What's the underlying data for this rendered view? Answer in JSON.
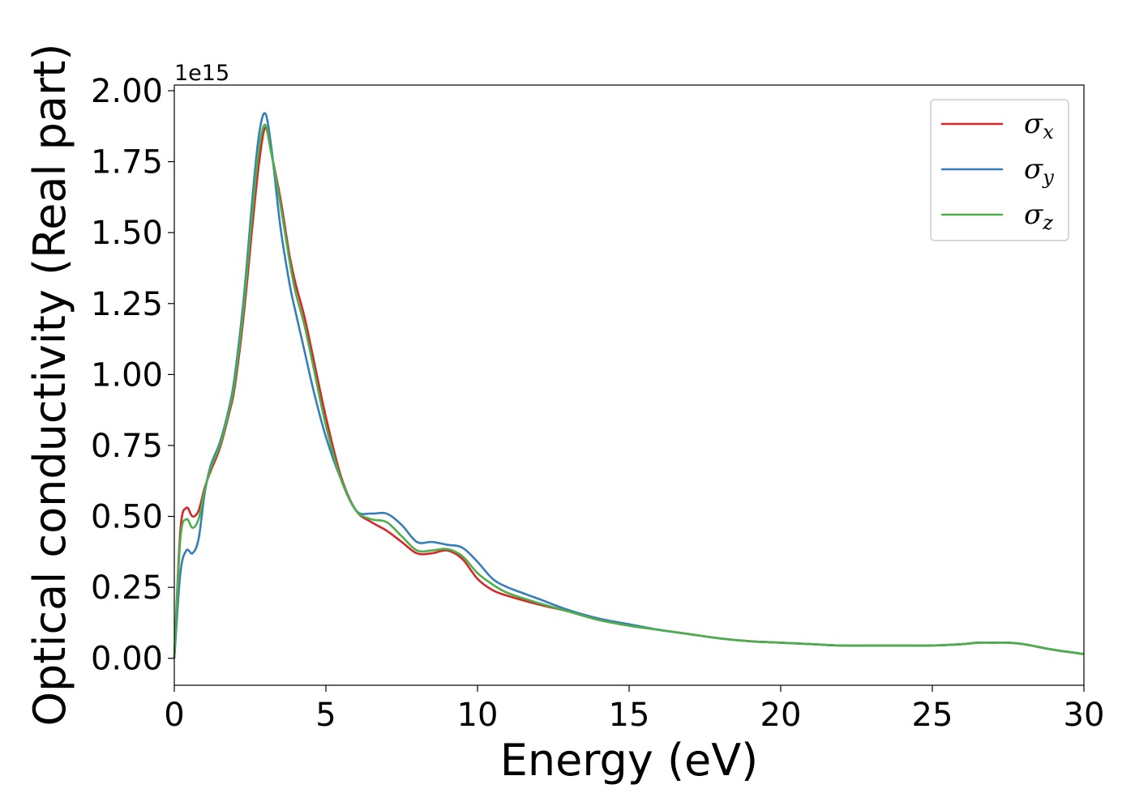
{
  "chart_data": {
    "type": "line",
    "xlabel": "Energy (eV)",
    "ylabel": "Optical conductivity (Real part)",
    "y_offset_label": "1e15",
    "xlim": [
      0,
      30
    ],
    "ylim": [
      -0.095,
      2.02
    ],
    "y_scale": 1000000000000000.0,
    "x_ticks": [
      0,
      5,
      10,
      15,
      20,
      25,
      30
    ],
    "x_tick_labels": [
      "0",
      "5",
      "10",
      "15",
      "20",
      "25",
      "30"
    ],
    "y_ticks": [
      0.0,
      0.25,
      0.5,
      0.75,
      1.0,
      1.25,
      1.5,
      1.75,
      2.0
    ],
    "y_tick_labels": [
      "0.00",
      "0.25",
      "0.50",
      "0.75",
      "1.00",
      "1.25",
      "1.50",
      "1.75",
      "2.00"
    ],
    "grid": false,
    "legend_position": "top-right",
    "series": [
      {
        "name": "σ",
        "subscript": "x",
        "color": "#d62728",
        "x": [
          0,
          0.2,
          0.4,
          0.6,
          0.8,
          1.0,
          1.2,
          1.5,
          1.8,
          2.0,
          2.3,
          2.6,
          2.8,
          3.0,
          3.2,
          3.5,
          3.8,
          4.0,
          4.3,
          4.6,
          5.0,
          5.5,
          6.0,
          6.5,
          7.0,
          7.5,
          8.0,
          8.5,
          9.0,
          9.5,
          10.0,
          10.5,
          11.0,
          12.0,
          13.0,
          14.0,
          15.0,
          16.0,
          17.0,
          18.0,
          19.0,
          20.0,
          21.0,
          22.0,
          23.0,
          24.0,
          25.0,
          26.0,
          26.5,
          27.0,
          27.5,
          28.0,
          29.0,
          30.0
        ],
        "values": [
          0.0,
          0.45,
          0.53,
          0.5,
          0.52,
          0.6,
          0.66,
          0.74,
          0.86,
          0.96,
          1.22,
          1.55,
          1.75,
          1.87,
          1.78,
          1.62,
          1.42,
          1.32,
          1.2,
          1.05,
          0.85,
          0.64,
          0.52,
          0.48,
          0.45,
          0.41,
          0.37,
          0.37,
          0.38,
          0.35,
          0.28,
          0.24,
          0.22,
          0.19,
          0.165,
          0.135,
          0.115,
          0.1,
          0.085,
          0.07,
          0.06,
          0.055,
          0.05,
          0.045,
          0.045,
          0.045,
          0.045,
          0.05,
          0.055,
          0.055,
          0.055,
          0.05,
          0.03,
          0.015
        ]
      },
      {
        "name": "σ",
        "subscript": "y",
        "color": "#377eb8",
        "x": [
          0,
          0.2,
          0.4,
          0.6,
          0.8,
          1.0,
          1.2,
          1.5,
          1.8,
          2.0,
          2.3,
          2.6,
          2.8,
          3.0,
          3.2,
          3.5,
          3.8,
          4.0,
          4.3,
          4.6,
          5.0,
          5.5,
          6.0,
          6.5,
          7.0,
          7.5,
          8.0,
          8.5,
          9.0,
          9.5,
          10.0,
          10.5,
          11.0,
          12.0,
          13.0,
          14.0,
          15.0,
          16.0,
          17.0,
          18.0,
          19.0,
          20.0,
          21.0,
          22.0,
          23.0,
          24.0,
          25.0,
          26.0,
          26.5,
          27.0,
          27.5,
          28.0,
          29.0,
          30.0
        ],
        "values": [
          0.0,
          0.3,
          0.38,
          0.37,
          0.42,
          0.58,
          0.68,
          0.76,
          0.88,
          1.0,
          1.28,
          1.65,
          1.85,
          1.92,
          1.8,
          1.52,
          1.32,
          1.22,
          1.08,
          0.94,
          0.78,
          0.63,
          0.52,
          0.51,
          0.51,
          0.47,
          0.41,
          0.41,
          0.4,
          0.39,
          0.34,
          0.28,
          0.25,
          0.21,
          0.17,
          0.14,
          0.12,
          0.1,
          0.085,
          0.07,
          0.06,
          0.055,
          0.05,
          0.045,
          0.045,
          0.045,
          0.045,
          0.05,
          0.055,
          0.055,
          0.055,
          0.05,
          0.03,
          0.015
        ]
      },
      {
        "name": "σ",
        "subscript": "z",
        "color": "#4daf4a",
        "x": [
          0,
          0.2,
          0.4,
          0.6,
          0.8,
          1.0,
          1.2,
          1.5,
          1.8,
          2.0,
          2.3,
          2.6,
          2.8,
          3.0,
          3.2,
          3.5,
          3.8,
          4.0,
          4.3,
          4.6,
          5.0,
          5.5,
          6.0,
          6.5,
          7.0,
          7.5,
          8.0,
          8.5,
          9.0,
          9.5,
          10.0,
          10.5,
          11.0,
          12.0,
          13.0,
          14.0,
          15.0,
          16.0,
          17.0,
          18.0,
          19.0,
          20.0,
          21.0,
          22.0,
          23.0,
          24.0,
          25.0,
          26.0,
          26.5,
          27.0,
          27.5,
          28.0,
          29.0,
          30.0
        ],
        "values": [
          0.0,
          0.42,
          0.49,
          0.46,
          0.49,
          0.59,
          0.67,
          0.75,
          0.87,
          0.98,
          1.25,
          1.6,
          1.8,
          1.88,
          1.78,
          1.6,
          1.4,
          1.29,
          1.17,
          1.02,
          0.82,
          0.63,
          0.52,
          0.49,
          0.48,
          0.43,
          0.38,
          0.38,
          0.385,
          0.36,
          0.3,
          0.26,
          0.23,
          0.195,
          0.165,
          0.135,
          0.115,
          0.1,
          0.085,
          0.07,
          0.06,
          0.055,
          0.05,
          0.045,
          0.045,
          0.045,
          0.045,
          0.05,
          0.055,
          0.055,
          0.055,
          0.05,
          0.03,
          0.015
        ]
      }
    ]
  }
}
